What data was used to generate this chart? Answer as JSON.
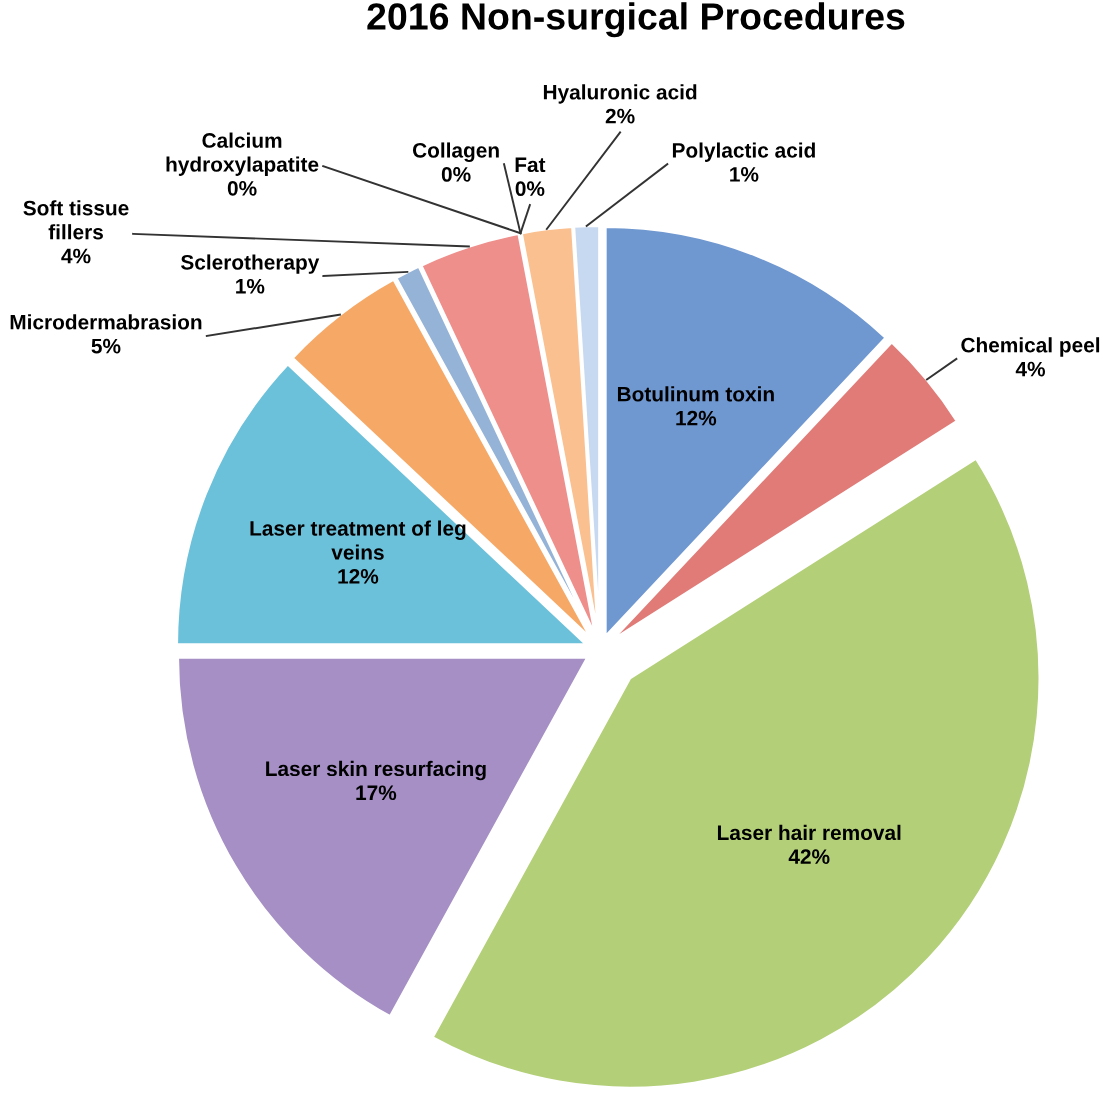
{
  "chart_data": {
    "type": "pie",
    "title": "2016 Non-surgical Procedures",
    "categories": [
      "Botulinum toxin",
      "Chemical peel",
      "Laser hair removal",
      "Laser skin resurfacing",
      "Laser treatment of leg veins",
      "Microdermabrasion",
      "Sclerotherapy",
      "Soft tissue fillers",
      "Calcium hydroxylapatite",
      "Collagen",
      "Fat",
      "Hyaluronic acid",
      "Polylactic acid"
    ],
    "values": [
      12,
      4,
      42,
      17,
      12,
      5,
      1,
      4,
      0,
      0,
      0,
      2,
      1
    ],
    "value_labels": [
      "12%",
      "4%",
      "42%",
      "17%",
      "12%",
      "5%",
      "1%",
      "4%",
      "0%",
      "0%",
      "0%",
      "2%",
      "1%"
    ],
    "colors": [
      "#6f97d0",
      "#e07b78",
      "#b3cf78",
      "#a58fc4",
      "#6cc1da",
      "#f6a966",
      "#95b3d7",
      "#ef8f8c",
      "#c3d69b",
      "#a9d8e6",
      "#93cddd",
      "#fac090",
      "#c6d9f1"
    ]
  }
}
